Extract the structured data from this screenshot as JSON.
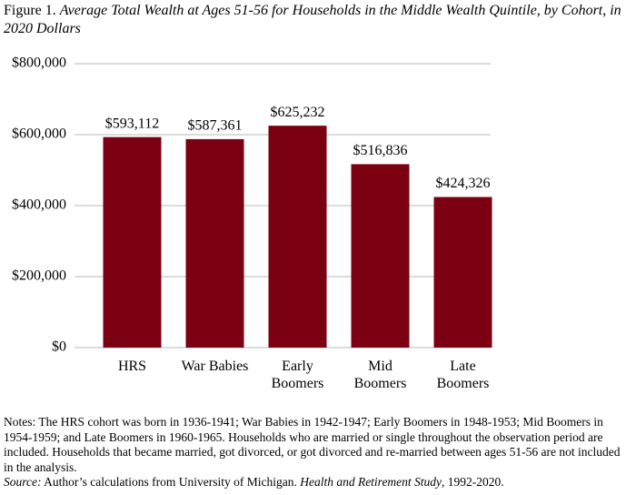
{
  "figure_label": "Figure 1.",
  "chart_data": {
    "type": "bar",
    "title": "Average Total Wealth at Ages 51-56 for Households in the Middle Wealth Quintile, by Cohort, in 2020 Dollars",
    "categories": [
      "HRS",
      "War Babies",
      "Early\nBoomers",
      "Mid\nBoomers",
      "Late\nBoomers"
    ],
    "values": [
      593112,
      587361,
      625232,
      516836,
      424326
    ],
    "value_labels": [
      "$593,112",
      "$587,361",
      "$625,232",
      "$516,836",
      "$424,326"
    ],
    "color": "#7b0011",
    "ylim": [
      0,
      800000
    ],
    "yticks": [
      {
        "value": 0,
        "label": "$0"
      },
      {
        "value": 200000,
        "label": "$200,000"
      },
      {
        "value": 400000,
        "label": "$400,000"
      },
      {
        "value": 600000,
        "label": "$600,000"
      },
      {
        "value": 800000,
        "label": "$800,000"
      }
    ],
    "grid": true
  },
  "notes": {
    "label": "Notes:",
    "text": "The HRS cohort was born in 1936-1941; War Babies in 1942-1947; Early Boomers in 1948-1953; Mid Boomers in 1954-1959; and Late Boomers in 1960-1965.  Households who are married or single throughout the observation period are included.  Households that became married, got divorced, or got divorced and re-married between ages 51-56 are not included in the analysis."
  },
  "source": {
    "label": "Source:",
    "text": "Author’s calculations from University of Michigan.",
    "study": "Health and Retirement Study",
    "years": ", 1992-2020."
  }
}
